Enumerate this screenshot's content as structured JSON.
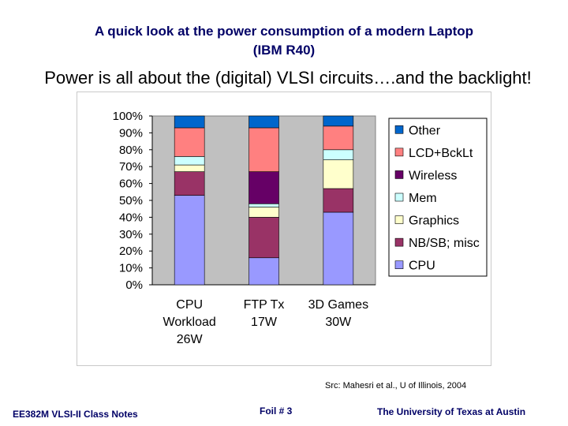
{
  "header": {
    "title_line1": "A quick look at the power consumption of a modern Laptop",
    "title_line2": "(IBM R40)",
    "subtitle": "Power is all about the (digital) VLSI circuits….and the backlight!"
  },
  "source": "Src: Mahesri et al., U of Illinois, 2004",
  "footer": {
    "course": "EE382M VLSI-II Class Notes",
    "foil": "Foil # 3",
    "university": "The University of Texas at Austin"
  },
  "chart_data": {
    "type": "bar",
    "stacked": true,
    "percent": true,
    "categories": [
      [
        "CPU",
        "Workload",
        "26W"
      ],
      [
        "FTP Tx",
        "17W"
      ],
      [
        "3D Games",
        "30W"
      ]
    ],
    "ylim": [
      0,
      100
    ],
    "yticks": [
      "0%",
      "10%",
      "20%",
      "30%",
      "40%",
      "50%",
      "60%",
      "70%",
      "80%",
      "90%",
      "100%"
    ],
    "legend_position": "right",
    "plot_background": "#c0c0c0",
    "series": [
      {
        "name": "CPU",
        "color": "#9999ff",
        "values": [
          53,
          16,
          43
        ]
      },
      {
        "name": "NB/SB; misc",
        "color": "#993366",
        "values": [
          14,
          24,
          14
        ]
      },
      {
        "name": "Graphics",
        "color": "#ffffcc",
        "values": [
          4,
          6,
          17
        ]
      },
      {
        "name": "Mem",
        "color": "#ccffff",
        "values": [
          5,
          2,
          6
        ]
      },
      {
        "name": "Wireless",
        "color": "#660066",
        "values": [
          0,
          19,
          0
        ]
      },
      {
        "name": "LCD+BckLt",
        "color": "#ff8080",
        "values": [
          17,
          26,
          14
        ]
      },
      {
        "name": "Other",
        "color": "#0066cc",
        "values": [
          7,
          7,
          6
        ]
      }
    ]
  }
}
